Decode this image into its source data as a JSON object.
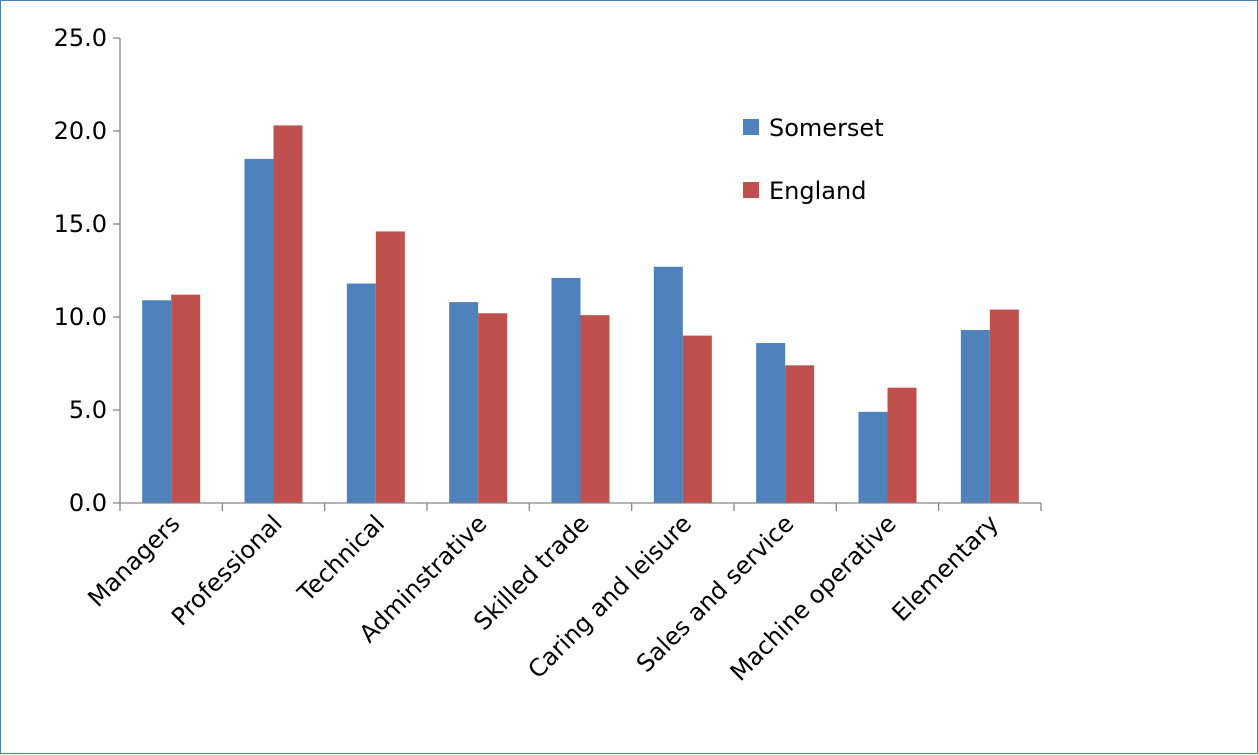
{
  "chart_data": {
    "type": "bar",
    "title": "",
    "xlabel": "",
    "ylabel": "",
    "ylim": [
      0,
      25
    ],
    "yticks": [
      "0.0",
      "5.0",
      "10.0",
      "15.0",
      "20.0",
      "25.0"
    ],
    "categories": [
      "Managers",
      "Professional",
      "Technical",
      "Adminstrative",
      "Skilled trade",
      "Caring and leisure",
      "Sales and service",
      "Machine operative",
      "Elementary"
    ],
    "series": [
      {
        "name": "Somerset",
        "color": "#4f81bd",
        "values": [
          10.9,
          18.5,
          11.8,
          10.8,
          12.1,
          12.7,
          8.6,
          4.9,
          9.3
        ]
      },
      {
        "name": "England",
        "color": "#c0504d",
        "values": [
          11.2,
          20.3,
          14.6,
          10.2,
          10.1,
          9.0,
          7.4,
          6.2,
          10.4
        ]
      }
    ],
    "grid": false,
    "legend": "top-right"
  }
}
